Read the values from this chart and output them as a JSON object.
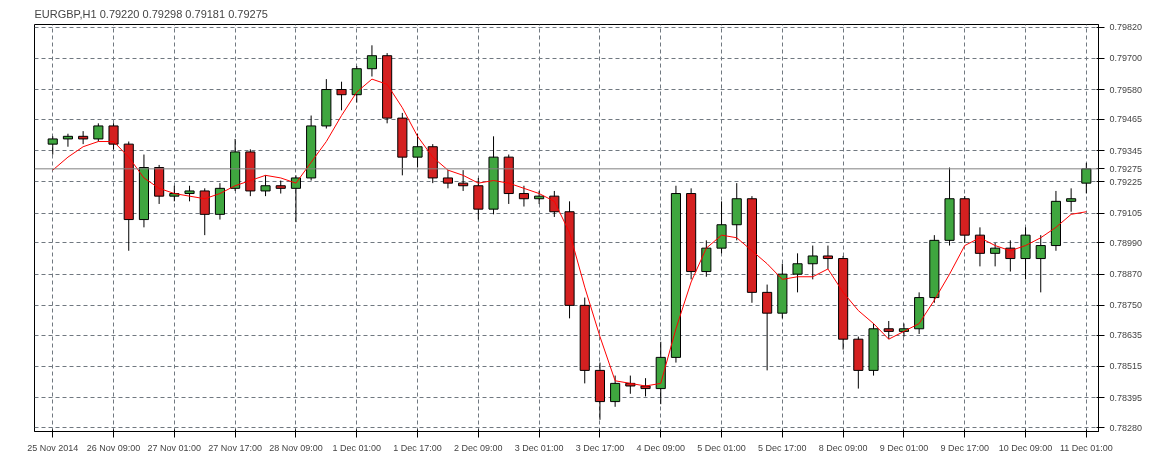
{
  "chart_data": {
    "type": "candlestick",
    "title": "EURGBP,H1  0.79220 0.79298 0.79181 0.79275",
    "categories": [
      "25 Nov 2014",
      null,
      null,
      null,
      "26 Nov 09:00",
      null,
      null,
      null,
      "27 Nov 01:00",
      null,
      null,
      null,
      "27 Nov 17:00",
      null,
      null,
      null,
      "28 Nov 09:00",
      null,
      null,
      null,
      "1 Dec 01:00",
      null,
      null,
      null,
      "1 Dec 17:00",
      null,
      null,
      null,
      "2 Dec 09:00",
      null,
      null,
      null,
      "3 Dec 01:00",
      null,
      null,
      null,
      "3 Dec 17:00",
      null,
      null,
      null,
      "4 Dec 09:00",
      null,
      null,
      null,
      "5 Dec 01:00",
      null,
      null,
      null,
      "5 Dec 17:00",
      null,
      null,
      null,
      "8 Dec 09:00",
      null,
      null,
      null,
      "9 Dec 01:00",
      null,
      null,
      null,
      "9 Dec 17:00",
      null,
      null,
      null,
      "10 Dec 09:00",
      null,
      null,
      null,
      "11 Dec 01:00"
    ],
    "ohlc": [
      [
        0.7937,
        0.794,
        0.7933,
        0.7939
      ],
      [
        0.7939,
        0.7941,
        0.7936,
        0.794
      ],
      [
        0.794,
        0.7942,
        0.7937,
        0.7939
      ],
      [
        0.7939,
        0.7945,
        0.7938,
        0.7944
      ],
      [
        0.7944,
        0.7945,
        0.7935,
        0.7937
      ],
      [
        0.7937,
        0.7938,
        0.7896,
        0.7908
      ],
      [
        0.7908,
        0.7933,
        0.7905,
        0.7928
      ],
      [
        0.7928,
        0.7929,
        0.7914,
        0.7917
      ],
      [
        0.7917,
        0.7921,
        0.7915,
        0.7918
      ],
      [
        0.7918,
        0.7921,
        0.7915,
        0.7919
      ],
      [
        0.7919,
        0.792,
        0.7902,
        0.791
      ],
      [
        0.791,
        0.7922,
        0.7908,
        0.792
      ],
      [
        0.792,
        0.7939,
        0.7919,
        0.7934
      ],
      [
        0.7934,
        0.7935,
        0.7917,
        0.7919
      ],
      [
        0.7919,
        0.7925,
        0.7917,
        0.7921
      ],
      [
        0.7921,
        0.7923,
        0.7918,
        0.792
      ],
      [
        0.792,
        0.7925,
        0.7907,
        0.7924
      ],
      [
        0.7924,
        0.7948,
        0.7923,
        0.7944
      ],
      [
        0.7944,
        0.7962,
        0.7943,
        0.7958
      ],
      [
        0.7958,
        0.7961,
        0.795,
        0.7956
      ],
      [
        0.7956,
        0.7967,
        0.7953,
        0.7966
      ],
      [
        0.7966,
        0.7975,
        0.7963,
        0.7971
      ],
      [
        0.7971,
        0.7972,
        0.7945,
        0.7947
      ],
      [
        0.7947,
        0.7949,
        0.7925,
        0.7932
      ],
      [
        0.7932,
        0.7941,
        0.7928,
        0.7936
      ],
      [
        0.7936,
        0.7937,
        0.7922,
        0.7924
      ],
      [
        0.7924,
        0.7927,
        0.792,
        0.7922
      ],
      [
        0.7922,
        0.7927,
        0.7919,
        0.7921
      ],
      [
        0.7921,
        0.7924,
        0.7908,
        0.7912
      ],
      [
        0.7912,
        0.794,
        0.791,
        0.7932
      ],
      [
        0.7932,
        0.7933,
        0.7914,
        0.7918
      ],
      [
        0.7918,
        0.7921,
        0.7913,
        0.7916
      ],
      [
        0.7916,
        0.7919,
        0.7914,
        0.7917
      ],
      [
        0.7917,
        0.7919,
        0.7909,
        0.7911
      ],
      [
        0.7911,
        0.7915,
        0.787,
        0.7875
      ],
      [
        0.7875,
        0.7878,
        0.7845,
        0.785
      ],
      [
        0.785,
        0.7853,
        0.7831,
        0.7838
      ],
      [
        0.7838,
        0.7848,
        0.7836,
        0.7845
      ],
      [
        0.7845,
        0.7848,
        0.7841,
        0.7844
      ],
      [
        0.7844,
        0.7847,
        0.784,
        0.7843
      ],
      [
        0.7843,
        0.7861,
        0.7837,
        0.7855
      ],
      [
        0.7855,
        0.7921,
        0.7853,
        0.7918
      ],
      [
        0.7918,
        0.792,
        0.7885,
        0.7888
      ],
      [
        0.7888,
        0.79,
        0.7886,
        0.7897
      ],
      [
        0.7897,
        0.7915,
        0.7895,
        0.7906
      ],
      [
        0.7906,
        0.7922,
        0.79,
        0.7916
      ],
      [
        0.7916,
        0.7917,
        0.7876,
        0.788
      ],
      [
        0.788,
        0.7883,
        0.785,
        0.7872
      ],
      [
        0.7872,
        0.7891,
        0.787,
        0.7887
      ],
      [
        0.7887,
        0.7895,
        0.788,
        0.7891
      ],
      [
        0.7891,
        0.7898,
        0.7885,
        0.7894
      ],
      [
        0.7894,
        0.7898,
        0.7889,
        0.7893
      ],
      [
        0.7893,
        0.7894,
        0.7858,
        0.7862
      ],
      [
        0.7862,
        0.7863,
        0.7843,
        0.785
      ],
      [
        0.785,
        0.7868,
        0.7848,
        0.7866
      ],
      [
        0.7866,
        0.7869,
        0.7862,
        0.7865
      ],
      [
        0.7865,
        0.7868,
        0.7863,
        0.7866
      ],
      [
        0.7866,
        0.788,
        0.7864,
        0.7878
      ],
      [
        0.7878,
        0.7902,
        0.7876,
        0.79
      ],
      [
        0.79,
        0.7928,
        0.7898,
        0.7916
      ],
      [
        0.7916,
        0.7917,
        0.7899,
        0.7902
      ],
      [
        0.7902,
        0.7905,
        0.789,
        0.7895
      ],
      [
        0.7895,
        0.7899,
        0.789,
        0.7897
      ],
      [
        0.7897,
        0.79,
        0.7888,
        0.7893
      ],
      [
        0.7893,
        0.7905,
        0.7885,
        0.7902
      ],
      [
        0.7893,
        0.7902,
        0.788,
        0.7898
      ],
      [
        0.7898,
        0.7919,
        0.7896,
        0.7915
      ],
      [
        0.7915,
        0.792,
        0.7911,
        0.7916
      ],
      [
        0.7922,
        0.79298,
        0.79181,
        0.79275
      ]
    ],
    "colors": [
      "#3fa63f",
      "#3fa63f",
      "#d42020",
      "#3fa63f",
      "#d42020",
      "#d42020",
      "#3fa63f",
      "#d42020",
      "#3fa63f",
      "#3fa63f",
      "#d42020",
      "#3fa63f",
      "#3fa63f",
      "#d42020",
      "#3fa63f",
      "#d42020",
      "#3fa63f",
      "#3fa63f",
      "#3fa63f",
      "#d42020",
      "#3fa63f",
      "#3fa63f",
      "#d42020",
      "#d42020",
      "#3fa63f",
      "#d42020",
      "#d42020",
      "#d42020",
      "#d42020",
      "#3fa63f",
      "#d42020",
      "#d42020",
      "#3fa63f",
      "#d42020",
      "#d42020",
      "#d42020",
      "#d42020",
      "#3fa63f",
      "#d42020",
      "#d42020",
      "#3fa63f",
      "#3fa63f",
      "#d42020",
      "#3fa63f",
      "#3fa63f",
      "#3fa63f",
      "#d42020",
      "#d42020",
      "#3fa63f",
      "#3fa63f",
      "#3fa63f",
      "#d42020",
      "#d42020",
      "#d42020",
      "#3fa63f",
      "#d42020",
      "#3fa63f",
      "#3fa63f",
      "#3fa63f",
      "#3fa63f",
      "#d42020",
      "#d42020",
      "#3fa63f",
      "#d42020",
      "#3fa63f",
      "#3fa63f",
      "#3fa63f",
      "#3fa63f",
      "#3fa63f"
    ],
    "series": [
      {
        "type": "line",
        "color": "#ff0000",
        "values": [
          0.7927,
          0.7932,
          0.7936,
          0.7938,
          0.7938,
          0.7932,
          0.7924,
          0.792,
          0.7918,
          0.7917,
          0.7916,
          0.7918,
          0.7921,
          0.7923,
          0.7925,
          0.7924,
          0.7922,
          0.793,
          0.7938,
          0.7948,
          0.7957,
          0.7962,
          0.796,
          0.7951,
          0.794,
          0.7932,
          0.7927,
          0.7925,
          0.7922,
          0.7923,
          0.7922,
          0.792,
          0.7918,
          0.7915,
          0.7903,
          0.7882,
          0.7863,
          0.7846,
          0.7845,
          0.7844,
          0.7845,
          0.7866,
          0.7884,
          0.7897,
          0.7902,
          0.7901,
          0.7896,
          0.7891,
          0.7885,
          0.7886,
          0.7886,
          0.7889,
          0.788,
          0.7873,
          0.7868,
          0.7862,
          0.7865,
          0.7868,
          0.7877,
          0.7887,
          0.7898,
          0.7901,
          0.7898,
          0.7896,
          0.7898,
          0.7901,
          0.7905,
          0.791,
          0.7911
        ]
      }
    ],
    "ylim": [
      0.78265,
      0.7983
    ],
    "yticks": [
      {
        "value": 0.7982,
        "label": "0.79820"
      },
      {
        "value": 0.797,
        "label": "0.79700"
      },
      {
        "value": 0.7958,
        "label": "0.79580"
      },
      {
        "value": 0.79465,
        "label": "0.79465"
      },
      {
        "value": 0.79345,
        "label": "0.79345"
      },
      {
        "value": 0.79225,
        "label": "0.79225"
      },
      {
        "value": 0.79105,
        "label": "0.79105"
      },
      {
        "value": 0.7899,
        "label": "0.78990"
      },
      {
        "value": 0.7887,
        "label": "0.78870"
      },
      {
        "value": 0.7875,
        "label": "0.78750"
      },
      {
        "value": 0.78635,
        "label": "0.78635"
      },
      {
        "value": 0.78515,
        "label": "0.78515"
      },
      {
        "value": 0.78395,
        "label": "0.78395"
      },
      {
        "value": 0.7828,
        "label": "0.78280"
      }
    ],
    "grid": true,
    "ref_lines": [
      {
        "axis": "y",
        "value": 0.79275,
        "label": "0.79275",
        "color": "#808080"
      }
    ]
  }
}
